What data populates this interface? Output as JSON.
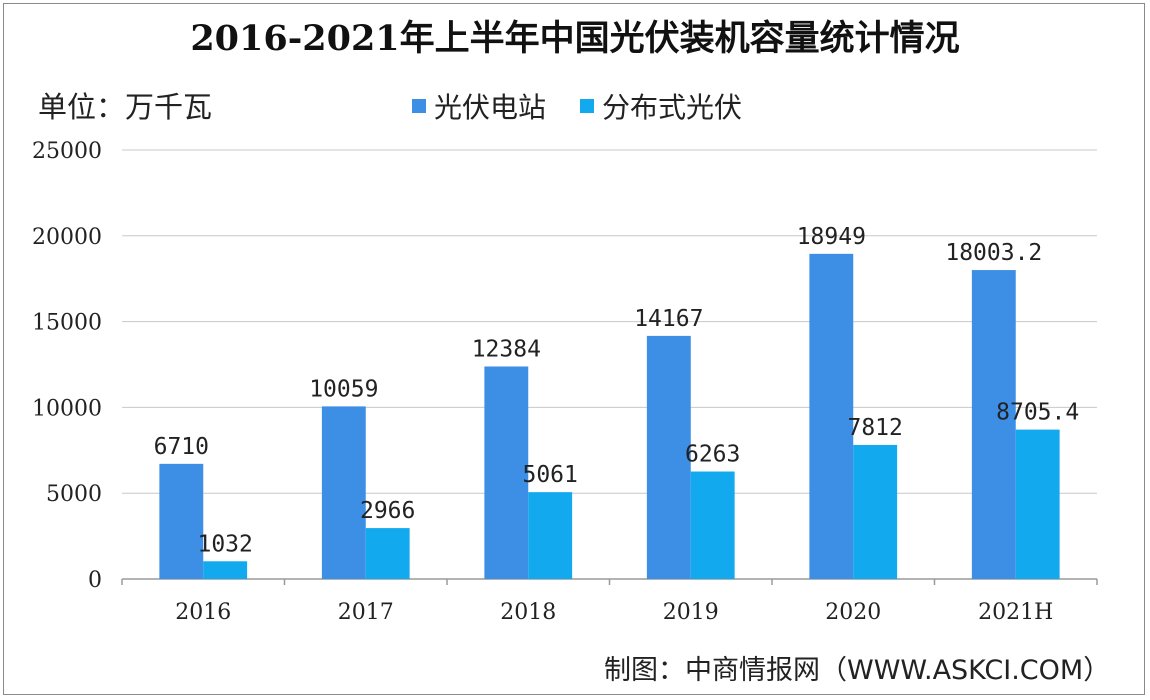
{
  "chart_data": {
    "type": "bar",
    "title": "2016-2021年上半年中国光伏装机容量统计情况",
    "unit_label": "单位：万千瓦",
    "categories": [
      "2016",
      "2017",
      "2018",
      "2019",
      "2020",
      "2021H"
    ],
    "series": [
      {
        "name": "光伏电站",
        "color": "#3d8fe6",
        "values": [
          6710,
          10059,
          12384,
          14167,
          18949,
          18003.2
        ],
        "labels": [
          "6710",
          "10059",
          "12384",
          "14167",
          "18949",
          "18003.2"
        ]
      },
      {
        "name": "分布式光伏",
        "color": "#12a9ee",
        "values": [
          1032,
          2966,
          5061,
          6263,
          7812,
          8705.4
        ],
        "labels": [
          "1032",
          "2966",
          "5061",
          "6263",
          "7812",
          "8705.4"
        ]
      }
    ],
    "ylim": [
      0,
      25000
    ],
    "yticks": [
      "0",
      "5000",
      "10000",
      "15000",
      "20000",
      "25000"
    ],
    "grid": true,
    "legend_position": "top-center"
  },
  "footer": {
    "source": "制图：中商情报网（WWW.ASKCI.COM）"
  }
}
